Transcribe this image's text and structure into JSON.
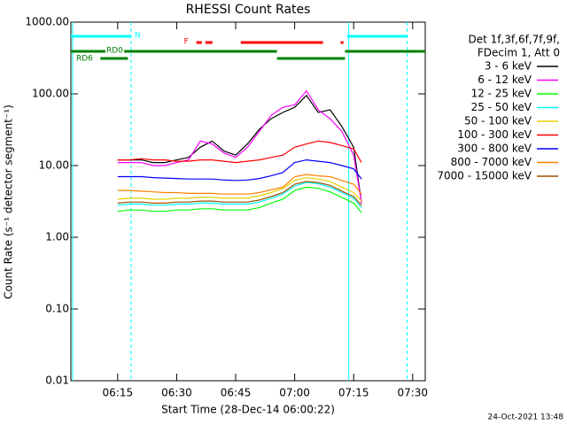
{
  "chart_data": {
    "type": "line",
    "title": "RHESSI Count Rates",
    "x_label": "Start Time (28-Dec-14 06:00:22)",
    "y_label": "Count Rate (s⁻¹ detector segment⁻¹)",
    "legend_header": [
      "Det 1f,3f,6f,7f,9f,",
      "FDecim 1, Att 0"
    ],
    "footer": "24-Oct-2021 13:48",
    "log_y": true,
    "xlim": [
      3.1,
      93.2
    ],
    "xticks": [
      {
        "value": 15,
        "label": "06:15"
      },
      {
        "value": 30,
        "label": "06:30"
      },
      {
        "value": 45,
        "label": "06:45"
      },
      {
        "value": 60,
        "label": "07:00"
      },
      {
        "value": 75,
        "label": "07:15"
      },
      {
        "value": 90,
        "label": "07:30"
      }
    ],
    "ylim": [
      0.01,
      1000
    ],
    "yticks": [
      {
        "value": 0.01,
        "label": "0.01"
      },
      {
        "value": 0.1,
        "label": "0.10"
      },
      {
        "value": 1,
        "label": "1.00"
      },
      {
        "value": 10,
        "label": "10.00"
      },
      {
        "value": 100,
        "label": "100.00"
      },
      {
        "value": 1000,
        "label": "1000.00"
      }
    ],
    "flags": [
      {
        "label": "N",
        "color": "#00ffff",
        "intervals": [
          [
            3.1,
            18.4
          ],
          [
            73.3,
            88.6
          ]
        ]
      },
      {
        "label": "F",
        "color": "#ff0000",
        "intervals": [
          [
            35,
            36.4
          ],
          [
            37.3,
            39.1
          ],
          [
            46.3,
            67.2
          ],
          [
            71.7,
            72.4
          ]
        ]
      },
      {
        "label": "RD0",
        "color": "#008000",
        "intervals": [
          [
            3.1,
            55.5
          ],
          [
            72.8,
            93.2
          ]
        ]
      },
      {
        "label": "RD6",
        "color": "#008000",
        "intervals": [
          [
            10.6,
            17.6
          ],
          [
            55.5,
            72.8
          ]
        ]
      }
    ],
    "x": [
      15,
      18,
      21,
      24,
      27,
      30,
      33,
      36,
      39,
      42,
      45,
      48,
      51,
      54,
      57,
      60,
      63,
      66,
      69,
      72,
      75,
      77
    ],
    "series": [
      {
        "name": "3 - 6 keV",
        "color": "#000000",
        "values": [
          12,
          12,
          12,
          11,
          11,
          12,
          13,
          18,
          22,
          16,
          14,
          20,
          32,
          45,
          55,
          65,
          95,
          55,
          60,
          35,
          18,
          3
        ]
      },
      {
        "name": "6 - 12 keV",
        "color": "#ff00ff",
        "values": [
          11,
          11,
          11,
          10,
          10,
          11,
          12,
          22,
          20,
          15,
          13,
          18,
          30,
          50,
          65,
          70,
          110,
          60,
          45,
          30,
          14,
          3
        ]
      },
      {
        "name": "12 - 25 keV",
        "color": "#00ff00",
        "values": [
          2.3,
          2.4,
          2.4,
          2.3,
          2.3,
          2.4,
          2.4,
          2.5,
          2.5,
          2.4,
          2.4,
          2.4,
          2.6,
          3,
          3.4,
          4.5,
          5,
          4.8,
          4.3,
          3.6,
          3,
          2.2
        ]
      },
      {
        "name": "25 - 50 keV",
        "color": "#00ffff",
        "values": [
          2.8,
          2.9,
          2.9,
          2.8,
          2.8,
          2.9,
          2.9,
          3,
          3,
          2.9,
          2.9,
          2.9,
          3.1,
          3.5,
          4,
          5.2,
          5.8,
          5.6,
          5,
          4.2,
          3.5,
          2.6
        ]
      },
      {
        "name": "50 - 100 keV",
        "color": "#e6d200",
        "values": [
          3.4,
          3.5,
          3.5,
          3.4,
          3.4,
          3.5,
          3.5,
          3.6,
          3.6,
          3.5,
          3.5,
          3.5,
          3.8,
          4.2,
          4.8,
          6.2,
          6.8,
          6.5,
          6,
          5,
          4.2,
          3.2
        ]
      },
      {
        "name": "100 - 300 keV",
        "color": "#ff0000",
        "values": [
          12,
          12,
          12.5,
          12,
          12,
          11.5,
          11.5,
          12,
          12,
          11.5,
          11,
          11.5,
          12,
          13,
          14,
          18,
          20,
          22,
          21,
          19,
          17,
          11
        ]
      },
      {
        "name": "300 - 800 keV",
        "color": "#0000ff",
        "values": [
          7,
          7,
          7,
          6.8,
          6.7,
          6.6,
          6.5,
          6.5,
          6.5,
          6.3,
          6.2,
          6.3,
          6.6,
          7.2,
          8,
          11,
          12,
          11.5,
          11,
          10,
          9,
          6.5
        ]
      },
      {
        "name": "800 - 7000 keV",
        "color": "#ff8000",
        "values": [
          4.5,
          4.5,
          4.4,
          4.3,
          4.2,
          4.2,
          4.1,
          4.1,
          4.1,
          4,
          4,
          4,
          4.2,
          4.6,
          5,
          7,
          7.5,
          7.2,
          7,
          6.2,
          5.5,
          4
        ]
      },
      {
        "name": "7000 - 15000 keV",
        "color": "#a05000",
        "values": [
          3,
          3.1,
          3.1,
          3,
          3,
          3.1,
          3.1,
          3.2,
          3.2,
          3.1,
          3.1,
          3.1,
          3.3,
          3.7,
          4.2,
          5.5,
          6,
          5.8,
          5.3,
          4.4,
          3.7,
          2.8
        ]
      }
    ]
  }
}
